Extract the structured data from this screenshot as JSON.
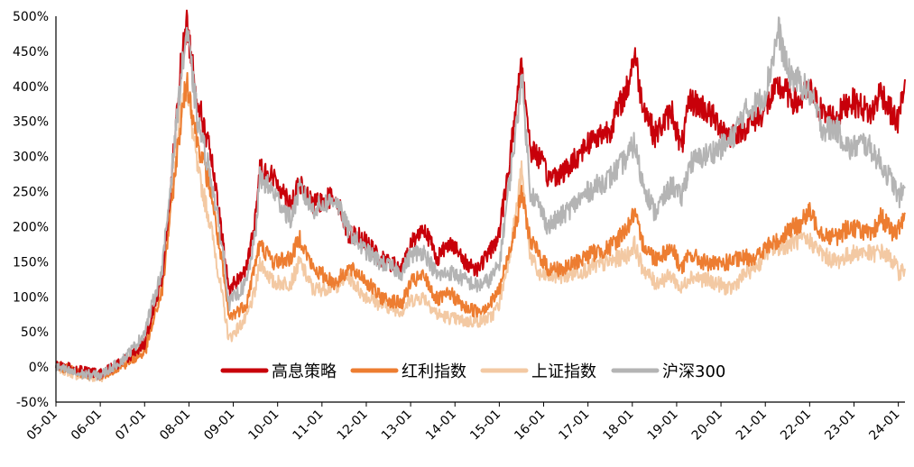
{
  "chart_data": {
    "type": "line",
    "title": "",
    "xlabel": "",
    "ylabel": "",
    "ylim": [
      -50,
      500
    ],
    "y_ticks": [
      "500%",
      "450%",
      "400%",
      "350%",
      "300%",
      "250%",
      "200%",
      "150%",
      "100%",
      "50%",
      "0%",
      "-50%"
    ],
    "y_tick_values": [
      500,
      450,
      400,
      350,
      300,
      250,
      200,
      150,
      100,
      50,
      0,
      -50
    ],
    "x_ticks": [
      "05-01",
      "06-01",
      "07-01",
      "08-01",
      "09-01",
      "10-01",
      "11-01",
      "12-01",
      "13-01",
      "14-01",
      "15-01",
      "16-01",
      "17-01",
      "18-01",
      "19-01",
      "20-01",
      "21-01",
      "22-01",
      "23-01",
      "24-01"
    ],
    "xlim": [
      2005.0,
      2024.15
    ],
    "grid": false,
    "legend_position": "bottom-center",
    "series": [
      {
        "name": "高息策略",
        "color": "#C8000A",
        "stroke": 4,
        "x": [
          2005.0,
          2005.5,
          2006.0,
          2006.5,
          2006.85,
          2007.0,
          2007.4,
          2007.6,
          2007.8,
          2007.95,
          2008.2,
          2008.5,
          2008.8,
          2008.9,
          2009.3,
          2009.5,
          2009.6,
          2009.9,
          2010.3,
          2010.5,
          2010.8,
          2011.3,
          2011.6,
          2011.9,
          2012.3,
          2012.8,
          2013.0,
          2013.3,
          2013.6,
          2013.9,
          2014.2,
          2014.5,
          2014.8,
          2015.0,
          2015.2,
          2015.4,
          2015.5,
          2015.7,
          2015.9,
          2016.1,
          2016.5,
          2017.0,
          2017.5,
          2017.9,
          2018.05,
          2018.2,
          2018.5,
          2018.9,
          2019.1,
          2019.3,
          2019.6,
          2019.9,
          2020.2,
          2020.5,
          2020.9,
          2021.0,
          2021.3,
          2021.5,
          2021.7,
          2022.0,
          2022.3,
          2022.6,
          2022.9,
          2023.2,
          2023.4,
          2023.6,
          2023.9,
          2024.0,
          2024.15
        ],
        "values": [
          5,
          -5,
          -10,
          8,
          25,
          35,
          130,
          260,
          420,
          490,
          380,
          300,
          160,
          110,
          140,
          210,
          285,
          270,
          235,
          260,
          230,
          245,
          190,
          185,
          155,
          140,
          175,
          200,
          155,
          180,
          150,
          140,
          165,
          190,
          280,
          380,
          440,
          310,
          300,
          270,
          280,
          320,
          340,
          400,
          450,
          385,
          330,
          365,
          310,
          380,
          370,
          350,
          330,
          340,
          360,
          370,
          400,
          390,
          375,
          395,
          360,
          355,
          380,
          370,
          360,
          395,
          355,
          350,
          410
        ]
      },
      {
        "name": "红利指数",
        "color": "#ED7D31",
        "stroke": 4,
        "x": [
          2005.0,
          2005.5,
          2006.0,
          2006.5,
          2006.85,
          2007.0,
          2007.4,
          2007.6,
          2007.8,
          2007.95,
          2008.2,
          2008.5,
          2008.8,
          2008.9,
          2009.3,
          2009.5,
          2009.6,
          2009.9,
          2010.3,
          2010.5,
          2010.8,
          2011.3,
          2011.6,
          2011.9,
          2012.3,
          2012.8,
          2013.0,
          2013.3,
          2013.6,
          2013.9,
          2014.2,
          2014.5,
          2014.8,
          2015.0,
          2015.2,
          2015.4,
          2015.5,
          2015.7,
          2015.9,
          2016.1,
          2016.5,
          2017.0,
          2017.5,
          2017.9,
          2018.05,
          2018.2,
          2018.5,
          2018.9,
          2019.1,
          2019.3,
          2019.6,
          2019.9,
          2020.2,
          2020.5,
          2020.9,
          2021.0,
          2021.3,
          2021.5,
          2021.7,
          2022.0,
          2022.3,
          2022.6,
          2022.9,
          2023.2,
          2023.4,
          2023.6,
          2023.9,
          2024.0,
          2024.15
        ],
        "values": [
          2,
          -8,
          -12,
          2,
          15,
          20,
          110,
          230,
          340,
          410,
          320,
          250,
          120,
          70,
          90,
          150,
          175,
          150,
          155,
          185,
          140,
          120,
          140,
          130,
          100,
          90,
          120,
          130,
          95,
          105,
          85,
          80,
          90,
          110,
          160,
          210,
          250,
          180,
          160,
          140,
          140,
          160,
          170,
          200,
          220,
          180,
          155,
          170,
          140,
          160,
          150,
          145,
          150,
          155,
          160,
          170,
          180,
          195,
          200,
          220,
          190,
          185,
          200,
          195,
          185,
          215,
          190,
          195,
          220
        ]
      },
      {
        "name": "上证指数",
        "color": "#F3C9A3",
        "stroke": 4,
        "x": [
          2005.0,
          2005.5,
          2006.0,
          2006.5,
          2006.85,
          2007.0,
          2007.4,
          2007.6,
          2007.8,
          2007.95,
          2008.2,
          2008.5,
          2008.8,
          2008.9,
          2009.3,
          2009.5,
          2009.6,
          2009.9,
          2010.3,
          2010.5,
          2010.8,
          2011.3,
          2011.6,
          2011.9,
          2012.3,
          2012.8,
          2013.0,
          2013.3,
          2013.6,
          2013.9,
          2014.2,
          2014.5,
          2014.8,
          2015.0,
          2015.2,
          2015.4,
          2015.5,
          2015.7,
          2015.9,
          2016.1,
          2016.5,
          2017.0,
          2017.5,
          2017.9,
          2018.05,
          2018.2,
          2018.5,
          2018.9,
          2019.1,
          2019.3,
          2019.6,
          2019.9,
          2020.2,
          2020.5,
          2020.9,
          2021.0,
          2021.3,
          2021.5,
          2021.7,
          2022.0,
          2022.3,
          2022.6,
          2022.9,
          2023.2,
          2023.4,
          2023.6,
          2023.9,
          2024.0,
          2024.15
        ],
        "values": [
          0,
          -12,
          -15,
          5,
          20,
          30,
          120,
          240,
          360,
          400,
          280,
          200,
          80,
          40,
          70,
          110,
          150,
          120,
          120,
          150,
          110,
          115,
          130,
          105,
          90,
          80,
          95,
          100,
          75,
          70,
          65,
          65,
          70,
          90,
          150,
          230,
          280,
          160,
          130,
          130,
          130,
          140,
          150,
          160,
          175,
          145,
          120,
          130,
          110,
          130,
          125,
          120,
          110,
          130,
          150,
          165,
          170,
          175,
          180,
          180,
          160,
          150,
          160,
          165,
          160,
          165,
          150,
          135,
          140
        ]
      },
      {
        "name": "沪深300",
        "color": "#B4B4B4",
        "stroke": 4,
        "x": [
          2005.0,
          2005.5,
          2006.0,
          2006.5,
          2006.85,
          2007.0,
          2007.4,
          2007.6,
          2007.8,
          2007.95,
          2008.2,
          2008.5,
          2008.8,
          2008.9,
          2009.3,
          2009.5,
          2009.6,
          2009.9,
          2010.3,
          2010.5,
          2010.8,
          2011.3,
          2011.6,
          2011.9,
          2012.3,
          2012.8,
          2013.0,
          2013.3,
          2013.6,
          2013.9,
          2014.2,
          2014.5,
          2014.8,
          2015.0,
          2015.2,
          2015.4,
          2015.5,
          2015.7,
          2015.9,
          2016.1,
          2016.5,
          2017.0,
          2017.5,
          2017.9,
          2018.05,
          2018.2,
          2018.5,
          2018.9,
          2019.1,
          2019.3,
          2019.6,
          2019.9,
          2020.2,
          2020.5,
          2020.9,
          2021.0,
          2021.3,
          2021.5,
          2021.7,
          2022.0,
          2022.3,
          2022.6,
          2022.9,
          2023.2,
          2023.4,
          2023.6,
          2023.9,
          2024.0,
          2024.15
        ],
        "values": [
          0,
          -10,
          -12,
          10,
          35,
          50,
          140,
          270,
          400,
          480,
          350,
          270,
          150,
          90,
          120,
          190,
          270,
          250,
          210,
          255,
          225,
          240,
          195,
          170,
          150,
          135,
          160,
          165,
          130,
          135,
          125,
          115,
          125,
          145,
          250,
          350,
          420,
          250,
          230,
          200,
          220,
          250,
          270,
          300,
          320,
          270,
          220,
          260,
          240,
          290,
          300,
          310,
          320,
          360,
          380,
          390,
          480,
          420,
          410,
          390,
          340,
          340,
          310,
          320,
          310,
          290,
          260,
          240,
          255
        ]
      }
    ]
  }
}
